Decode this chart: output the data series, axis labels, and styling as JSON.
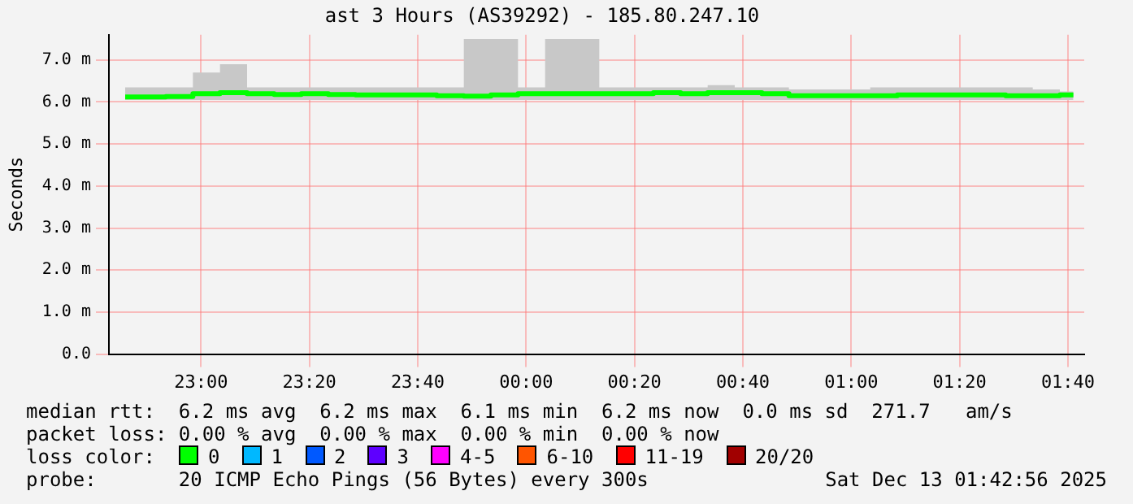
{
  "chart_data": {
    "type": "step",
    "title": "ast 3 Hours (AS39292) - 185.80.247.10",
    "ylabel": "Seconds",
    "x": [
      "2025-12-12T22:46",
      "2025-12-12T22:51",
      "2025-12-12T22:56",
      "2025-12-12T23:01",
      "2025-12-12T23:06",
      "2025-12-12T23:11",
      "2025-12-12T23:16",
      "2025-12-12T23:21",
      "2025-12-12T23:26",
      "2025-12-12T23:31",
      "2025-12-12T23:36",
      "2025-12-12T23:41",
      "2025-12-12T23:46",
      "2025-12-12T23:51",
      "2025-12-12T23:56",
      "2025-12-13T00:01",
      "2025-12-13T00:06",
      "2025-12-13T00:11",
      "2025-12-13T00:16",
      "2025-12-13T00:21",
      "2025-12-13T00:26",
      "2025-12-13T00:31",
      "2025-12-13T00:36",
      "2025-12-13T00:41",
      "2025-12-13T00:46",
      "2025-12-13T00:51",
      "2025-12-13T00:56",
      "2025-12-13T01:01",
      "2025-12-13T01:06",
      "2025-12-13T01:11",
      "2025-12-13T01:16",
      "2025-12-13T01:21",
      "2025-12-13T01:26",
      "2025-12-13T01:31",
      "2025-12-13T01:36",
      "2025-12-13T01:41"
    ],
    "series": [
      {
        "color": "#00ff00",
        "values": [
          6.12,
          6.12,
          6.13,
          6.2,
          6.22,
          6.2,
          6.18,
          6.2,
          6.18,
          6.17,
          6.17,
          6.17,
          6.15,
          6.14,
          6.17,
          6.2,
          6.2,
          6.2,
          6.2,
          6.2,
          6.22,
          6.2,
          6.22,
          6.22,
          6.2,
          6.15,
          6.15,
          6.15,
          6.15,
          6.17,
          6.17,
          6.17,
          6.17,
          6.15,
          6.15,
          6.17
        ],
        "lower": [
          6.05,
          6.05,
          6.05,
          6.05,
          6.05,
          6.05,
          6.05,
          6.05,
          6.05,
          6.05,
          6.05,
          6.05,
          6.05,
          6.05,
          6.05,
          6.05,
          6.05,
          6.05,
          6.05,
          6.05,
          6.05,
          6.05,
          6.05,
          6.05,
          6.05,
          6.05,
          6.05,
          6.05,
          6.05,
          6.05,
          6.05,
          6.05,
          6.05,
          6.05,
          6.05,
          6.05
        ],
        "upper": [
          6.35,
          6.35,
          6.35,
          6.7,
          6.9,
          6.35,
          6.35,
          6.35,
          6.35,
          6.35,
          6.35,
          6.35,
          6.35,
          7.5,
          7.5,
          6.35,
          7.5,
          7.5,
          6.35,
          6.35,
          6.35,
          6.35,
          6.4,
          6.35,
          6.35,
          6.3,
          6.3,
          6.3,
          6.35,
          6.35,
          6.35,
          6.35,
          6.35,
          6.35,
          6.3,
          6.25
        ]
      }
    ],
    "xlim": [
      "2025-12-12T22:43",
      "2025-12-13T01:43"
    ],
    "xticks": [
      {
        "value": "2025-12-12T23:00",
        "label": "23:00"
      },
      {
        "value": "2025-12-12T23:20",
        "label": "23:20"
      },
      {
        "value": "2025-12-12T23:40",
        "label": "23:40"
      },
      {
        "value": "2025-12-13T00:00",
        "label": "00:00"
      },
      {
        "value": "2025-12-13T00:20",
        "label": "00:20"
      },
      {
        "value": "2025-12-13T00:40",
        "label": "00:40"
      },
      {
        "value": "2025-12-13T01:00",
        "label": "01:00"
      },
      {
        "value": "2025-12-13T01:20",
        "label": "01:20"
      },
      {
        "value": "2025-12-13T01:40",
        "label": "01:40"
      }
    ],
    "ylim": [
      0,
      7.6
    ],
    "yticks": [
      {
        "value": 0,
        "label": "0.0"
      },
      {
        "value": 1,
        "label": "1.0 m"
      },
      {
        "value": 2,
        "label": "2.0 m"
      },
      {
        "value": 3,
        "label": "3.0 m"
      },
      {
        "value": 4,
        "label": "4.0 m"
      },
      {
        "value": 5,
        "label": "5.0 m"
      },
      {
        "value": 6,
        "label": "6.0 m"
      },
      {
        "value": 7,
        "label": "7.0 m"
      }
    ],
    "grid": true,
    "legend": false,
    "annotations": [
      "median rtt:  6.2 ms avg  6.2 ms max  6.1 ms min  6.2 ms now  0.0 ms sd  271.7   am/s",
      "packet loss: 0.00 % avg  0.00 % max  0.00 % min  0.00 % now",
      "loss color:",
      "0",
      "1",
      "2",
      "3",
      "4-5",
      "6-10",
      "11-19",
      "20/20",
      "probe:       20 ICMP Echo Pings (56 Bytes) every 300s",
      "Sat Dec 13 01:42:56 2025"
    ]
  }
}
